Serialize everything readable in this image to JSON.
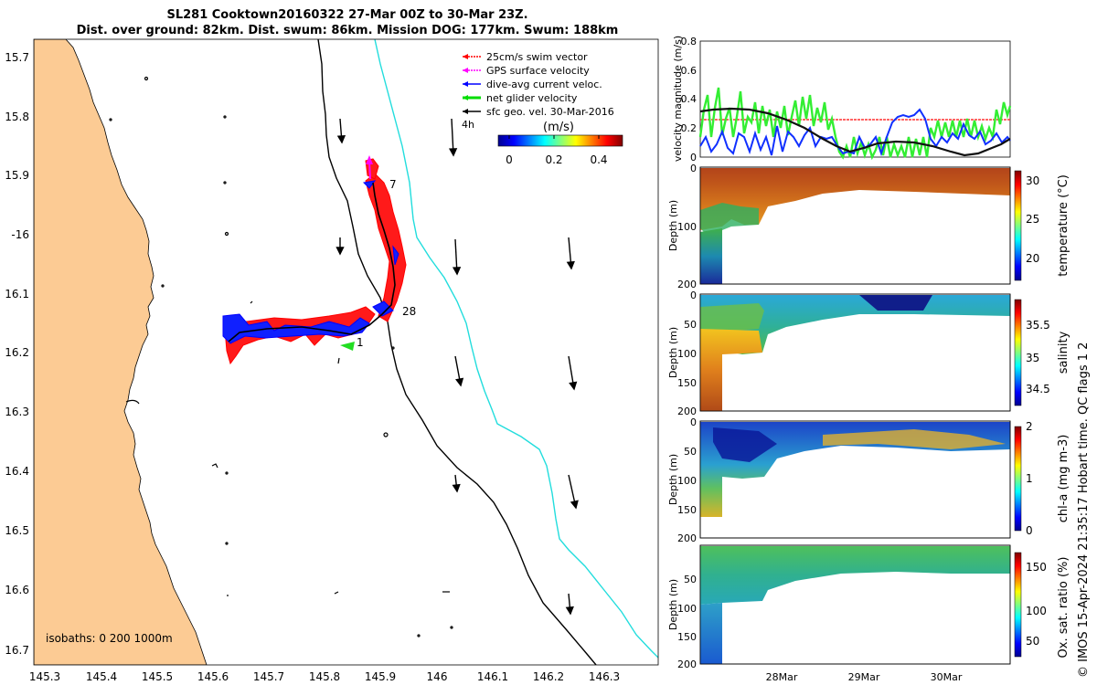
{
  "title": {
    "line1": "SL281 Cooktown20160322 27-Mar 00Z to 30-Mar 23Z.",
    "line2": "Dist. over ground: 82km. Dist. swum: 86km. Mission DOG: 177km. Swum: 188km"
  },
  "map": {
    "lon_ticks": [
      "145.3",
      "145.4",
      "145.5",
      "145.6",
      "145.7",
      "145.8",
      "145.9",
      "146",
      "146.1",
      "146.2",
      "146.3"
    ],
    "lat_ticks": [
      "15.7",
      "15.8",
      "15.9",
      "-16",
      "16.1",
      "16.2",
      "16.3",
      "16.4",
      "16.5",
      "16.6",
      "16.7"
    ],
    "lon_range": [
      145.25,
      146.37
    ],
    "lat_range": [
      15.65,
      16.72
    ],
    "legend": [
      {
        "label": "25cm/s swim vector",
        "color": "#ff0000"
      },
      {
        "label": "GPS surface velocity",
        "color": "#ff00ff"
      },
      {
        "label": "dive-avg current veloc.",
        "color": "#0000ff"
      },
      {
        "label": "net glider velocity",
        "color": "#00dd00"
      },
      {
        "label": "sfc geo. vel. 30-Mar-2016",
        "color": "#000000"
      }
    ],
    "legend_note": "4h",
    "colorbar_unit": "(m/s)",
    "colorbar_ticks": [
      "0",
      "0.2",
      "0.4"
    ],
    "day_labels": [
      "7",
      "28",
      "1"
    ],
    "isobaths_label": "isobaths: 0   200  1000m",
    "colors": {
      "land": "#fccb94",
      "isobath_200": "#000000",
      "isobath_1000": "#22dddd",
      "swim": "#ff0000",
      "current": "#0000ff"
    }
  },
  "velocity_panel": {
    "ylabel": "velocity magnitude (m/s)",
    "yticks": [
      "0",
      "0.2",
      "0.4",
      "0.6",
      "0.8"
    ],
    "ylim": [
      0,
      0.8
    ]
  },
  "profiles": [
    {
      "cbar_label": "temperature (°C)",
      "cbar_ticks": [
        "30",
        "25",
        "20"
      ],
      "ylabel": "Depth (m)",
      "yticks": [
        "0",
        "100",
        "200"
      ]
    },
    {
      "cbar_label": "salinity",
      "cbar_ticks": [
        "35.5",
        "35",
        "34.5"
      ],
      "ylabel": "Depth (m)",
      "yticks": [
        "0",
        "50",
        "100",
        "150",
        "200"
      ]
    },
    {
      "cbar_label": "chl-a (mg m-3)",
      "cbar_ticks": [
        "2",
        "1",
        "0"
      ],
      "ylabel": "Depth (m)",
      "yticks": [
        "0",
        "50",
        "100",
        "150",
        "200"
      ]
    },
    {
      "cbar_label": "Ox. sat. ratio (%)",
      "cbar_ticks": [
        "150",
        "100",
        "50"
      ],
      "ylabel": "Depth (m)",
      "yticks": [
        "50",
        "100",
        "150",
        "200"
      ]
    }
  ],
  "time_ticks": [
    "28Mar",
    "29Mar",
    "30Mar"
  ],
  "copyright": "© IMOS 15-Apr-2024 21:35:17 Hobart time. QC flags 1  2"
}
